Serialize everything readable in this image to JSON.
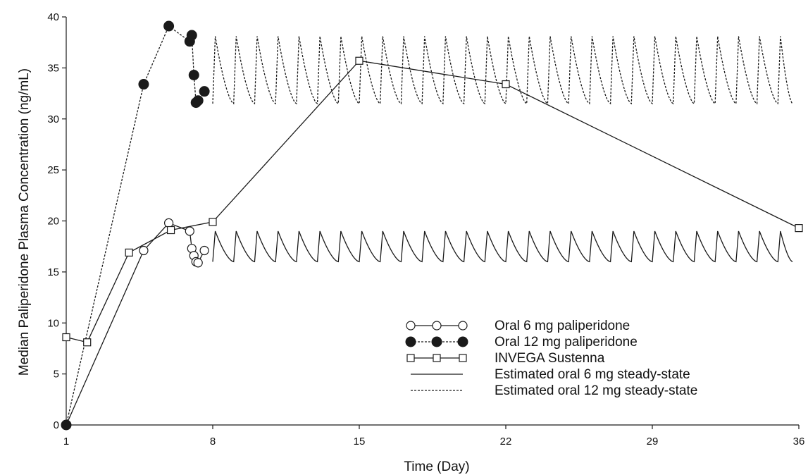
{
  "chart_data": {
    "type": "line",
    "title": "",
    "xlabel": "Time (Day)",
    "ylabel": "Median Paliperidone Plasma Concentration (ng/mL)",
    "xlim": [
      1,
      36
    ],
    "ylim": [
      0,
      40
    ],
    "x_ticks": [
      "1",
      "8",
      "15",
      "22",
      "29",
      "36"
    ],
    "y_ticks": [
      "0",
      "5",
      "10",
      "15",
      "20",
      "25",
      "30",
      "35",
      "40"
    ],
    "grid": false,
    "legend_position": "lower-right",
    "series": [
      {
        "name": "Oral 6 mg paliperidone",
        "marker": "open-circle",
        "line": "solid",
        "points": [
          {
            "x": 1,
            "y": 0
          },
          {
            "x": 4.7,
            "y": 17.1
          },
          {
            "x": 5.9,
            "y": 19.8
          },
          {
            "x": 6.9,
            "y": 19.0
          },
          {
            "x": 7.0,
            "y": 17.3
          },
          {
            "x": 7.1,
            "y": 16.6
          },
          {
            "x": 7.2,
            "y": 16.0
          },
          {
            "x": 7.3,
            "y": 15.9
          },
          {
            "x": 7.6,
            "y": 17.1
          }
        ]
      },
      {
        "name": "Oral 12 mg paliperidone",
        "marker": "filled-circle",
        "line": "dashed",
        "points": [
          {
            "x": 1,
            "y": 0
          },
          {
            "x": 4.7,
            "y": 33.4
          },
          {
            "x": 5.9,
            "y": 39.1
          },
          {
            "x": 6.9,
            "y": 37.6
          },
          {
            "x": 7.0,
            "y": 38.2
          },
          {
            "x": 7.1,
            "y": 34.3
          },
          {
            "x": 7.2,
            "y": 31.6
          },
          {
            "x": 7.3,
            "y": 31.8
          },
          {
            "x": 7.6,
            "y": 32.7
          }
        ]
      },
      {
        "name": "INVEGA Sustenna",
        "marker": "open-square",
        "line": "solid",
        "points": [
          {
            "x": 1,
            "y": 8.6
          },
          {
            "x": 2,
            "y": 8.1
          },
          {
            "x": 4,
            "y": 16.9
          },
          {
            "x": 6,
            "y": 19.1
          },
          {
            "x": 8,
            "y": 19.9
          },
          {
            "x": 15,
            "y": 35.7
          },
          {
            "x": 22,
            "y": 33.4
          },
          {
            "x": 36,
            "y": 19.3
          }
        ]
      },
      {
        "name": "Estimated oral 6 mg steady-state",
        "marker": "none",
        "line": "solid",
        "profile": {
          "start_day": 8,
          "end_day": 35.7,
          "period_days": 1,
          "trough": 16.0,
          "peak": 19.0
        }
      },
      {
        "name": "Estimated oral 12 mg steady-state",
        "marker": "none",
        "line": "dashed",
        "profile": {
          "start_day": 8,
          "end_day": 35.7,
          "period_days": 1,
          "trough": 31.5,
          "peak": 38.1
        }
      }
    ]
  },
  "colors": {
    "line": "#1a1a1a",
    "background": "#ffffff"
  }
}
